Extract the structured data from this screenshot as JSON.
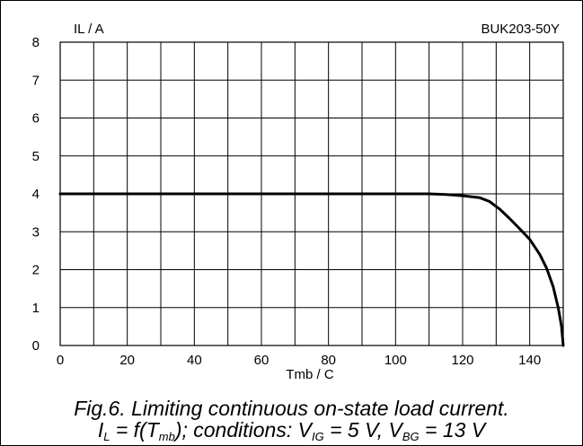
{
  "chart_data": {
    "type": "line",
    "device": "BUK203-50Y",
    "xlabel": "Tmb / C",
    "ylabel": "IL / A",
    "xlim": [
      0,
      150
    ],
    "ylim": [
      0,
      8
    ],
    "xticks": [
      0,
      20,
      40,
      60,
      80,
      100,
      120,
      140
    ],
    "yticks": [
      0,
      1,
      2,
      3,
      4,
      5,
      6,
      7,
      8
    ],
    "x_minor_step": 10,
    "grid": true,
    "series": [
      {
        "color": "#000000",
        "points": [
          [
            0,
            4.0
          ],
          [
            110,
            4.0
          ],
          [
            115,
            3.98
          ],
          [
            120,
            3.95
          ],
          [
            125,
            3.9
          ],
          [
            128,
            3.8
          ],
          [
            131,
            3.6
          ],
          [
            134,
            3.35
          ],
          [
            137,
            3.08
          ],
          [
            140,
            2.8
          ],
          [
            143,
            2.4
          ],
          [
            145,
            2.05
          ],
          [
            147,
            1.55
          ],
          [
            148.5,
            1.0
          ],
          [
            149.5,
            0.5
          ],
          [
            150,
            0.0
          ]
        ]
      }
    ]
  },
  "caption": {
    "line1": "Fig.6.   Limiting continuous on-state load current.",
    "line2": {
      "i": "I",
      "i_sub": "L",
      "eq": " = f(T",
      "t_sub": "mb",
      "cond": "); conditions: V",
      "v1_sub": "IG",
      "v1": " = 5 V, V",
      "v2_sub": "BG",
      "v2": " = 13 V"
    }
  }
}
